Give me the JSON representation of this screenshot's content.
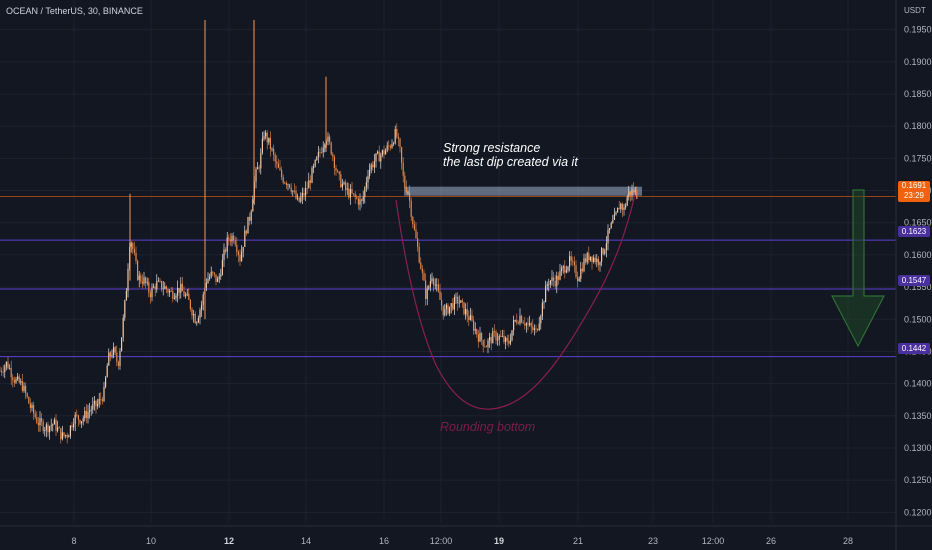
{
  "header": {
    "pair": "OCEAN / TetherUS, 30, BINANCE",
    "currency": "USDT"
  },
  "annotations": {
    "resistance_line1": "Strong resistance",
    "resistance_line2": "the last dip created via it",
    "pattern": "Rounding bottom"
  },
  "colors": {
    "background": "#131722",
    "candle": "#e98b4d",
    "wick_up": "#ffffff",
    "level_line": "#5b3fd1",
    "current_line": "#f0620d",
    "curve": "#8b1f4f",
    "resistance_zone": "#9fb0c8",
    "arrow": "#2f6e36"
  },
  "price_tags": {
    "current": "0.1691",
    "countdown": "23:29",
    "level1": "0.1623",
    "level2": "0.1547",
    "level3": "0.1442"
  },
  "chart_data": {
    "type": "candlestick",
    "x_ticks": [
      "8",
      "10",
      "12",
      "14",
      "16",
      "12:00",
      "19",
      "21",
      "23",
      "12:00",
      "26",
      "28"
    ],
    "y_ticks": [
      "0.1950",
      "0.1900",
      "0.1850",
      "0.1800",
      "0.1750",
      "0.1700",
      "0.1650",
      "0.1600",
      "0.1550",
      "0.1500",
      "0.1450",
      "0.1400",
      "0.1350",
      "0.1300",
      "0.1250",
      "0.1200"
    ],
    "ylim": [
      0.1185,
      0.1965
    ],
    "horizontal_levels": [
      0.1691,
      0.1623,
      0.1547,
      0.1442
    ],
    "resistance_zone": [
      0.1692,
      0.1706
    ],
    "close_path": [
      [
        0,
        0.142
      ],
      [
        7,
        0.1432
      ],
      [
        15,
        0.1405
      ],
      [
        22,
        0.1398
      ],
      [
        30,
        0.1365
      ],
      [
        38,
        0.134
      ],
      [
        46,
        0.1332
      ],
      [
        54,
        0.1338
      ],
      [
        62,
        0.1318
      ],
      [
        68,
        0.1322
      ],
      [
        74,
        0.1348
      ],
      [
        82,
        0.1345
      ],
      [
        90,
        0.136
      ],
      [
        98,
        0.1368
      ],
      [
        104,
        0.1386
      ],
      [
        108,
        0.1438
      ],
      [
        113,
        0.1452
      ],
      [
        118,
        0.143
      ],
      [
        122,
        0.148
      ],
      [
        126,
        0.154
      ],
      [
        130,
        0.163
      ],
      [
        134,
        0.16
      ],
      [
        138,
        0.1565
      ],
      [
        144,
        0.156
      ],
      [
        150,
        0.154
      ],
      [
        156,
        0.1555
      ],
      [
        164,
        0.155
      ],
      [
        172,
        0.154
      ],
      [
        180,
        0.1548
      ],
      [
        188,
        0.153
      ],
      [
        196,
        0.1498
      ],
      [
        202,
        0.1525
      ],
      [
        206,
        0.156
      ],
      [
        212,
        0.157
      ],
      [
        218,
        0.1558
      ],
      [
        224,
        0.16
      ],
      [
        228,
        0.1625
      ],
      [
        234,
        0.163
      ],
      [
        240,
        0.1595
      ],
      [
        246,
        0.164
      ],
      [
        250,
        0.166
      ],
      [
        255,
        0.172
      ],
      [
        260,
        0.1745
      ],
      [
        264,
        0.179
      ],
      [
        270,
        0.177
      ],
      [
        276,
        0.174
      ],
      [
        282,
        0.172
      ],
      [
        290,
        0.171
      ],
      [
        298,
        0.168
      ],
      [
        306,
        0.17
      ],
      [
        314,
        0.1735
      ],
      [
        320,
        0.176
      ],
      [
        326,
        0.1785
      ],
      [
        332,
        0.176
      ],
      [
        338,
        0.172
      ],
      [
        346,
        0.17
      ],
      [
        354,
        0.169
      ],
      [
        362,
        0.168
      ],
      [
        368,
        0.173
      ],
      [
        376,
        0.175
      ],
      [
        384,
        0.176
      ],
      [
        390,
        0.177
      ],
      [
        396,
        0.179
      ],
      [
        400,
        0.176
      ],
      [
        404,
        0.171
      ],
      [
        408,
        0.17
      ],
      [
        414,
        0.164
      ],
      [
        420,
        0.159
      ],
      [
        426,
        0.1535
      ],
      [
        432,
        0.157
      ],
      [
        438,
        0.154
      ],
      [
        444,
        0.151
      ],
      [
        450,
        0.152
      ],
      [
        458,
        0.153
      ],
      [
        464,
        0.1515
      ],
      [
        470,
        0.15
      ],
      [
        478,
        0.1475
      ],
      [
        486,
        0.146
      ],
      [
        494,
        0.1475
      ],
      [
        502,
        0.147
      ],
      [
        508,
        0.146
      ],
      [
        514,
        0.1495
      ],
      [
        520,
        0.1505
      ],
      [
        528,
        0.149
      ],
      [
        536,
        0.148
      ],
      [
        542,
        0.152
      ],
      [
        548,
        0.156
      ],
      [
        556,
        0.156
      ],
      [
        564,
        0.158
      ],
      [
        570,
        0.159
      ],
      [
        578,
        0.1565
      ],
      [
        584,
        0.159
      ],
      [
        590,
        0.16
      ],
      [
        598,
        0.159
      ],
      [
        604,
        0.161
      ],
      [
        610,
        0.164
      ],
      [
        616,
        0.166
      ],
      [
        620,
        0.168
      ],
      [
        624,
        0.167
      ],
      [
        628,
        0.1695
      ],
      [
        634,
        0.17
      ],
      [
        638,
        0.1691
      ]
    ]
  }
}
